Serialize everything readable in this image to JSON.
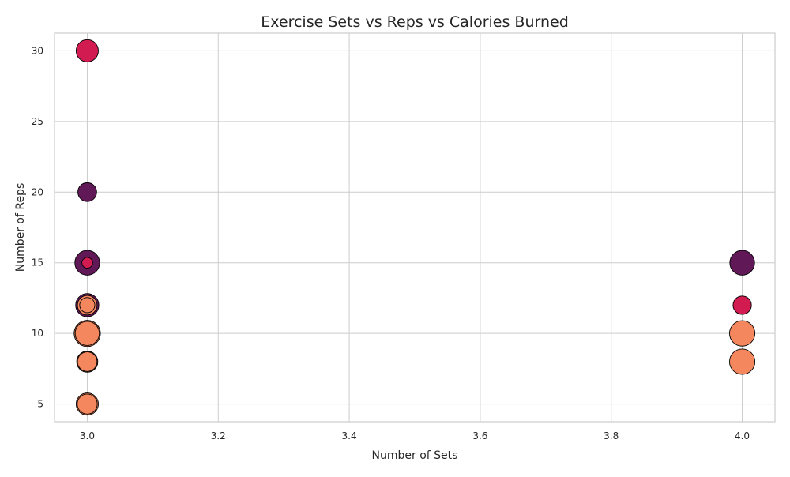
{
  "chart_data": {
    "type": "scatter",
    "title": "Exercise Sets vs Reps vs Calories Burned",
    "xlabel": "Number of Sets",
    "ylabel": "Number of Reps",
    "xlim": [
      2.95,
      4.05
    ],
    "ylim": [
      3.75,
      31.25
    ],
    "xticks": [
      3.0,
      3.2,
      3.4,
      3.6,
      3.8,
      4.0
    ],
    "xtick_labels": [
      "3.0",
      "3.2",
      "3.4",
      "3.6",
      "3.8",
      "4.0"
    ],
    "yticks": [
      5,
      10,
      15,
      20,
      25,
      30
    ],
    "ytick_labels": [
      "5",
      "10",
      "15",
      "20",
      "25",
      "30"
    ],
    "grid": true,
    "legend": "none",
    "points": [
      {
        "x": 3,
        "y": 30,
        "size": 320,
        "color": "#d11b51"
      },
      {
        "x": 3,
        "y": 20,
        "size": 230,
        "color": "#611857"
      },
      {
        "x": 3,
        "y": 15,
        "size": 400,
        "color": "#611857"
      },
      {
        "x": 3,
        "y": 15,
        "size": 75,
        "color": "#d11b51"
      },
      {
        "x": 3,
        "y": 12,
        "size": 350,
        "color": "#611857"
      },
      {
        "x": 3,
        "y": 12,
        "size": 250,
        "color": "#f5875e"
      },
      {
        "x": 3,
        "y": 12,
        "size": 150,
        "color": "#f5875e"
      },
      {
        "x": 3,
        "y": 10,
        "size": 450,
        "color": "#f5875e"
      },
      {
        "x": 3,
        "y": 10,
        "size": 380,
        "color": "#f5875e"
      },
      {
        "x": 3,
        "y": 8,
        "size": 290,
        "color": "#f5875e"
      },
      {
        "x": 3,
        "y": 8,
        "size": 250,
        "color": "#f5875e"
      },
      {
        "x": 3,
        "y": 5,
        "size": 320,
        "color": "#f5875e"
      },
      {
        "x": 3,
        "y": 5,
        "size": 260,
        "color": "#f5875e"
      },
      {
        "x": 4,
        "y": 15,
        "size": 400,
        "color": "#611857"
      },
      {
        "x": 4,
        "y": 12,
        "size": 220,
        "color": "#d11b51"
      },
      {
        "x": 4,
        "y": 10,
        "size": 420,
        "color": "#f5875e"
      },
      {
        "x": 4,
        "y": 8,
        "size": 420,
        "color": "#f5875e"
      }
    ]
  }
}
